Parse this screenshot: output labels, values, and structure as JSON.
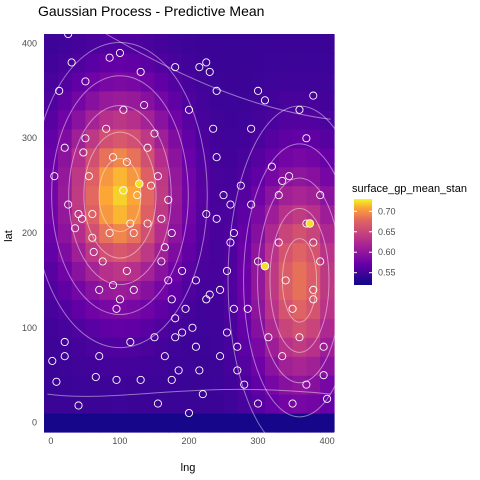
{
  "chart_data": {
    "type": "heatmap",
    "title": "Gaussian Process - Predictive Mean",
    "xlabel": "lng",
    "ylabel": "lat",
    "xlim": [
      -10,
      410
    ],
    "ylim": [
      -10,
      410
    ],
    "x_ticks": [
      0,
      100,
      200,
      300,
      400
    ],
    "y_ticks": [
      0,
      100,
      200,
      300,
      400
    ],
    "grid": true,
    "legend": {
      "title": "surface_gp_mean_stan",
      "placement": "right",
      "range": [
        0.52,
        0.73
      ],
      "ticks": [
        0.55,
        0.6,
        0.65,
        0.7
      ],
      "tick_labels": [
        "0.55",
        "0.60",
        "0.65",
        "0.70"
      ]
    },
    "surface": {
      "baseline": 0.545,
      "bumps": [
        {
          "cx": 100,
          "cy": 240,
          "amp": 0.175,
          "sx": 55,
          "sy": 70
        },
        {
          "cx": 360,
          "cy": 150,
          "amp": 0.14,
          "sx": 45,
          "sy": 80
        }
      ],
      "lower_edge_value": 0.525
    },
    "points": [
      [
        2,
        65
      ],
      [
        8,
        43
      ],
      [
        20,
        70
      ],
      [
        20,
        85
      ],
      [
        30,
        380
      ],
      [
        40,
        18
      ],
      [
        45,
        215
      ],
      [
        50,
        300
      ],
      [
        65,
        48
      ],
      [
        70,
        70
      ],
      [
        12,
        350
      ],
      [
        25,
        230
      ],
      [
        35,
        205
      ],
      [
        20,
        290
      ],
      [
        47,
        285
      ],
      [
        55,
        260
      ],
      [
        60,
        220
      ],
      [
        62,
        180
      ],
      [
        70,
        140
      ],
      [
        80,
        310
      ],
      [
        85,
        385
      ],
      [
        90,
        280
      ],
      [
        95,
        120
      ],
      [
        100,
        390
      ],
      [
        105,
        330
      ],
      [
        110,
        275
      ],
      [
        115,
        210
      ],
      [
        110,
        160
      ],
      [
        120,
        140
      ],
      [
        130,
        370
      ],
      [
        135,
        335
      ],
      [
        140,
        290
      ],
      [
        150,
        305
      ],
      [
        155,
        260
      ],
      [
        160,
        215
      ],
      [
        160,
        170
      ],
      [
        170,
        150
      ],
      [
        175,
        130
      ],
      [
        180,
        110
      ],
      [
        190,
        160
      ],
      [
        195,
        120
      ],
      [
        205,
        100
      ],
      [
        210,
        80
      ],
      [
        215,
        55
      ],
      [
        220,
        30
      ],
      [
        230,
        370
      ],
      [
        235,
        310
      ],
      [
        240,
        280
      ],
      [
        250,
        240
      ],
      [
        260,
        190
      ],
      [
        255,
        160
      ],
      [
        265,
        120
      ],
      [
        270,
        80
      ],
      [
        280,
        40
      ],
      [
        290,
        310
      ],
      [
        300,
        350
      ],
      [
        310,
        340
      ],
      [
        320,
        270
      ],
      [
        330,
        190
      ],
      [
        340,
        150
      ],
      [
        350,
        120
      ],
      [
        360,
        90
      ],
      [
        370,
        40
      ],
      [
        380,
        345
      ],
      [
        380,
        190
      ],
      [
        390,
        170
      ],
      [
        395,
        80
      ],
      [
        395,
        50
      ],
      [
        400,
        25
      ],
      [
        5,
        260
      ],
      [
        75,
        170
      ],
      [
        90,
        145
      ],
      [
        120,
        200
      ],
      [
        145,
        250
      ],
      [
        180,
        90
      ],
      [
        200,
        10
      ],
      [
        210,
        150
      ],
      [
        225,
        130
      ],
      [
        245,
        70
      ],
      [
        285,
        120
      ],
      [
        315,
        90
      ],
      [
        335,
        70
      ],
      [
        350,
        20
      ],
      [
        25,
        410
      ],
      [
        180,
        375
      ],
      [
        200,
        330
      ],
      [
        215,
        375
      ],
      [
        225,
        380
      ],
      [
        240,
        350
      ],
      [
        260,
        230
      ],
      [
        265,
        200
      ],
      [
        275,
        250
      ],
      [
        290,
        230
      ],
      [
        300,
        170
      ],
      [
        330,
        240
      ],
      [
        345,
        260
      ],
      [
        360,
        330
      ],
      [
        370,
        300
      ],
      [
        380,
        130
      ],
      [
        390,
        240
      ],
      [
        150,
        90
      ],
      [
        165,
        70
      ],
      [
        175,
        45
      ],
      [
        185,
        55
      ],
      [
        190,
        95
      ],
      [
        100,
        130
      ],
      [
        115,
        85
      ],
      [
        130,
        45
      ],
      [
        155,
        20
      ],
      [
        125,
        240
      ],
      [
        140,
        210
      ],
      [
        165,
        185
      ],
      [
        175,
        200
      ],
      [
        245,
        140
      ],
      [
        255,
        95
      ],
      [
        240,
        215
      ],
      [
        225,
        220
      ],
      [
        50,
        360
      ],
      [
        95,
        45
      ],
      [
        60,
        195
      ],
      [
        230,
        135
      ],
      [
        170,
        235
      ],
      [
        310,
        165
      ],
      [
        370,
        210
      ],
      [
        40,
        220
      ],
      [
        85,
        200
      ],
      [
        270,
        55
      ],
      [
        300,
        20
      ],
      [
        335,
        255
      ],
      [
        380,
        140
      ]
    ],
    "highlight_points": [
      {
        "lng": 105,
        "lat": 245
      },
      {
        "lng": 128,
        "lat": 252
      },
      {
        "lng": 310,
        "lat": 165
      },
      {
        "lng": 375,
        "lat": 210
      }
    ]
  }
}
